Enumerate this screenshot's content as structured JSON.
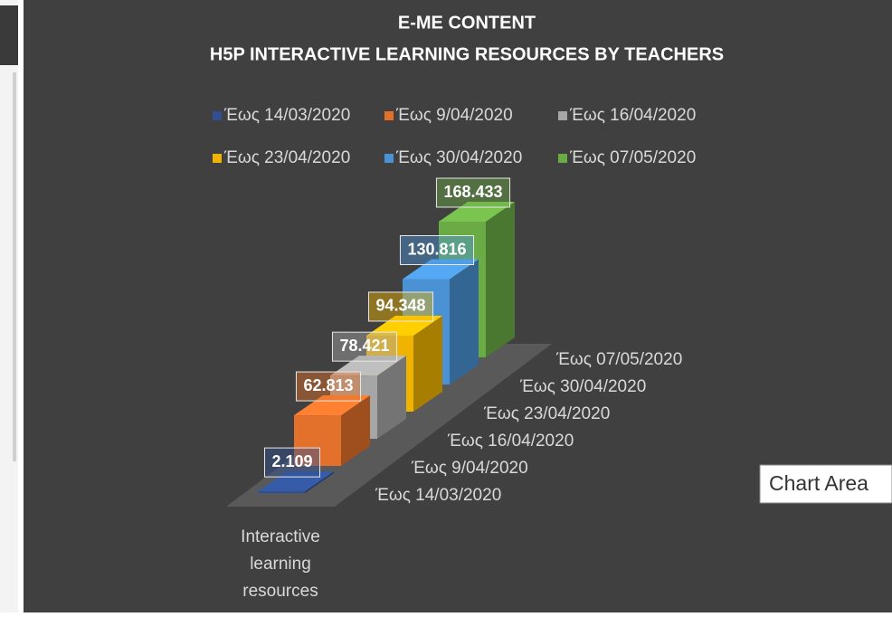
{
  "chart_data": {
    "type": "bar3d",
    "title": "E-ME CONTENT",
    "subtitle": "H5P INTERACTIVE LEARNING RESOURCES BY TEACHERS",
    "categories": [
      "Interactive learning resources"
    ],
    "series": [
      {
        "name": "Έως 14/03/2020",
        "color": "#2f4f93",
        "values": [
          2109
        ],
        "value_labels": [
          "2.109"
        ]
      },
      {
        "name": "Έως 9/04/2020",
        "color": "#e3702b",
        "values": [
          62813
        ],
        "value_labels": [
          "62.813"
        ]
      },
      {
        "name": "Έως 16/04/2020",
        "color": "#a6a6a6",
        "values": [
          78421
        ],
        "value_labels": [
          "78.421"
        ]
      },
      {
        "name": "Έως 23/04/2020",
        "color": "#f0b400",
        "values": [
          94348
        ],
        "value_labels": [
          "94.348"
        ]
      },
      {
        "name": "Έως 30/04/2020",
        "color": "#4a92d4",
        "values": [
          130816
        ],
        "value_labels": [
          "130.816"
        ]
      },
      {
        "name": "Έως 07/05/2020",
        "color": "#6aab45",
        "values": [
          168433
        ],
        "value_labels": [
          "168.433"
        ]
      }
    ],
    "legend": "top",
    "tooltip": "Chart Area"
  }
}
